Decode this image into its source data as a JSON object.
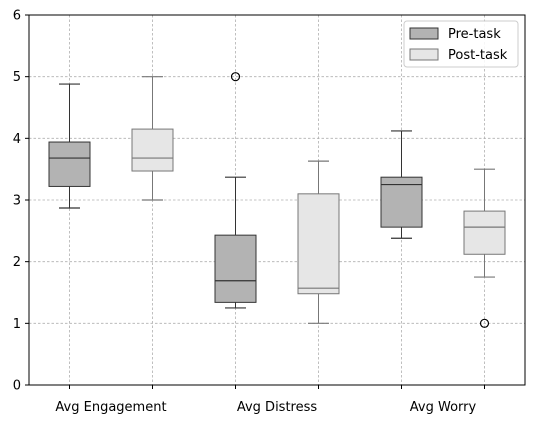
{
  "chart_data": {
    "type": "box",
    "categories": [
      "Avg Engagement",
      "Avg Distress",
      "Avg Worry"
    ],
    "ylim": [
      0,
      6
    ],
    "yticks": [
      "0",
      "1",
      "2",
      "3",
      "4",
      "5",
      "6"
    ],
    "grid": true,
    "legend_position": "top-right",
    "series": [
      {
        "name": "Pre-task",
        "fill": "#b3b3b3",
        "stroke": "#333333",
        "boxes": [
          {
            "whisker_low": 2.87,
            "q1": 3.22,
            "median": 3.68,
            "q3": 3.94,
            "whisker_high": 4.88,
            "outliers": []
          },
          {
            "whisker_low": 1.25,
            "q1": 1.34,
            "median": 1.69,
            "q3": 2.43,
            "whisker_high": 3.37,
            "outliers": [
              5.0
            ]
          },
          {
            "whisker_low": 2.38,
            "q1": 2.56,
            "median": 3.25,
            "q3": 3.37,
            "whisker_high": 4.12,
            "outliers": []
          }
        ]
      },
      {
        "name": "Post-task",
        "fill": "#e6e6e6",
        "stroke": "#777777",
        "boxes": [
          {
            "whisker_low": 3.0,
            "q1": 3.47,
            "median": 3.68,
            "q3": 4.15,
            "whisker_high": 5.0,
            "outliers": []
          },
          {
            "whisker_low": 1.0,
            "q1": 1.48,
            "median": 1.57,
            "q3": 3.1,
            "whisker_high": 3.63,
            "outliers": []
          },
          {
            "whisker_low": 1.75,
            "q1": 2.12,
            "median": 2.56,
            "q3": 2.82,
            "whisker_high": 3.5,
            "outliers": [
              1.0
            ]
          }
        ]
      }
    ]
  }
}
